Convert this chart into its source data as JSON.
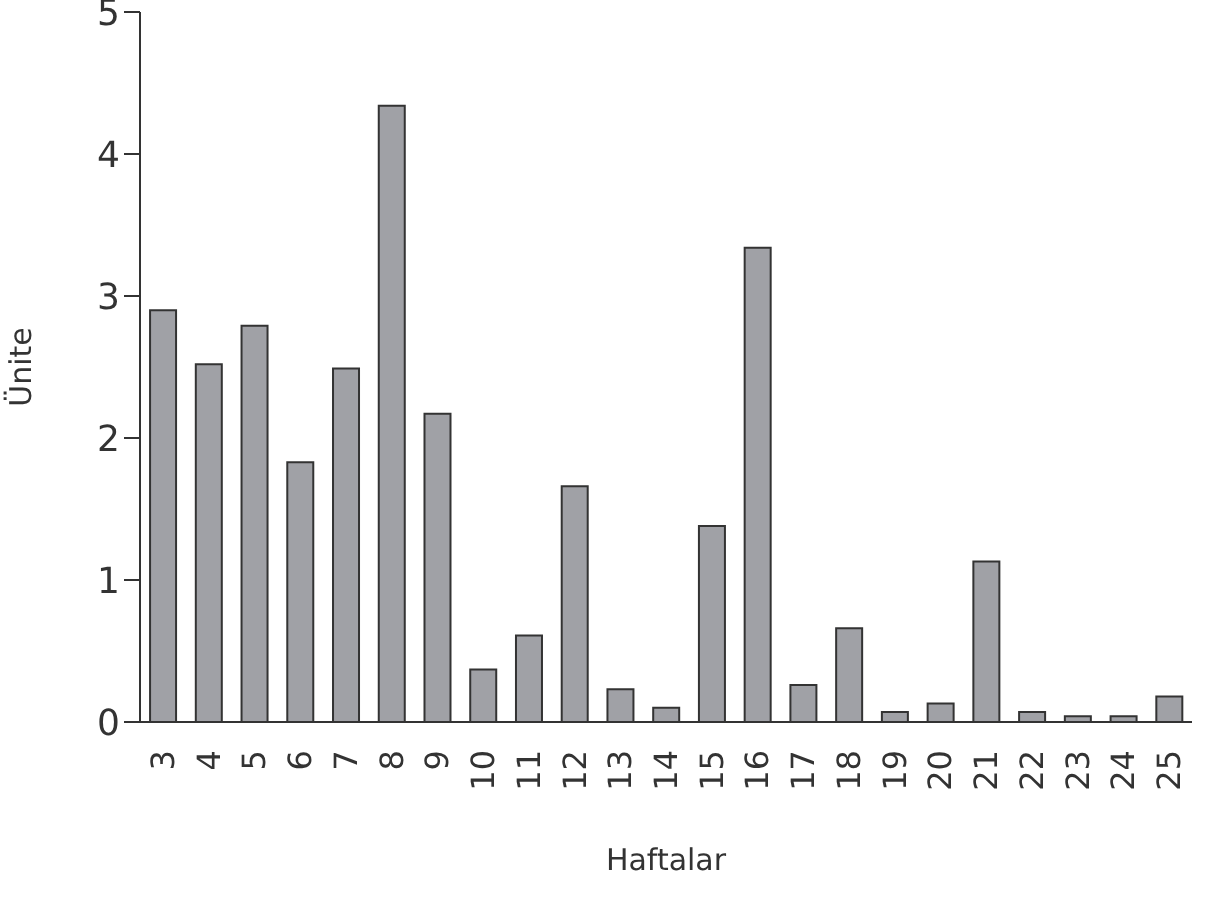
{
  "chart_data": {
    "type": "bar",
    "xlabel": "Haftalar",
    "ylabel": "Ünite",
    "categories": [
      "3",
      "4",
      "5",
      "6",
      "7",
      "8",
      "9",
      "10",
      "11",
      "12",
      "13",
      "14",
      "15",
      "16",
      "17",
      "18",
      "19",
      "20",
      "21",
      "22",
      "23",
      "24",
      "25"
    ],
    "values": [
      2.9,
      2.52,
      2.79,
      1.83,
      2.49,
      4.34,
      2.17,
      0.37,
      0.61,
      1.66,
      0.23,
      0.1,
      1.38,
      3.34,
      0.26,
      0.66,
      0.07,
      0.13,
      1.13,
      0.07,
      0.04,
      0.04,
      0.18
    ],
    "color": "#a0a1a6",
    "ylim": [
      0,
      5
    ],
    "yticks": [
      0,
      1,
      2,
      3,
      4,
      5
    ],
    "grid": false
  }
}
